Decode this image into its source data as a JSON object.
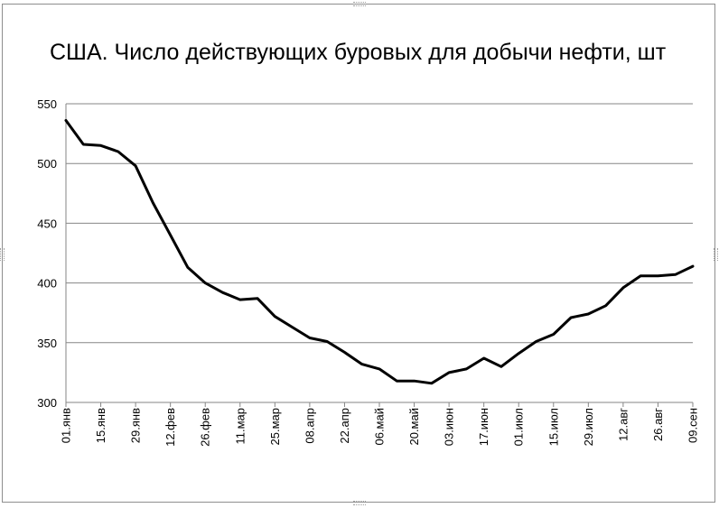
{
  "chart_data": {
    "type": "line",
    "title": "США. Число действующих буровых для добычи нефти, шт",
    "xlabel": "",
    "ylabel": "",
    "ylim": [
      300,
      550
    ],
    "yticks": [
      300,
      350,
      400,
      450,
      500,
      550
    ],
    "grid": true,
    "legend": "none",
    "x_tick_labels": [
      "01.янв",
      "15.янв",
      "29.янв",
      "12.фев",
      "26.фев",
      "11.мар",
      "25.мар",
      "08.апр",
      "22.апр",
      "06.май",
      "20.май",
      "03.июн",
      "17.июн",
      "01.июл",
      "15.июл",
      "29.июл",
      "12.авг",
      "26.авг",
      "09.сен"
    ],
    "x": [
      "01.янв",
      "08.янв",
      "15.янв",
      "22.янв",
      "29.янв",
      "05.фев",
      "12.фев",
      "19.фев",
      "26.фев",
      "04.мар",
      "11.мар",
      "18.мар",
      "25.мар",
      "01.апр",
      "08.апр",
      "15.апр",
      "22.апр",
      "29.апр",
      "06.май",
      "13.май",
      "20.май",
      "27.май",
      "03.июн",
      "10.июн",
      "17.июн",
      "24.июн",
      "01.июл",
      "08.июл",
      "15.июл",
      "22.июл",
      "29.июл",
      "05.авг",
      "12.авг",
      "19.авг",
      "26.авг",
      "02.сен",
      "09.сен"
    ],
    "series": [
      {
        "color": "#000000",
        "values": [
          536,
          516,
          515,
          510,
          498,
          467,
          440,
          413,
          400,
          392,
          386,
          387,
          372,
          363,
          354,
          351,
          342,
          332,
          328,
          318,
          318,
          316,
          325,
          328,
          337,
          330,
          341,
          351,
          357,
          371,
          374,
          381,
          396,
          406,
          406,
          407,
          414
        ]
      }
    ]
  }
}
